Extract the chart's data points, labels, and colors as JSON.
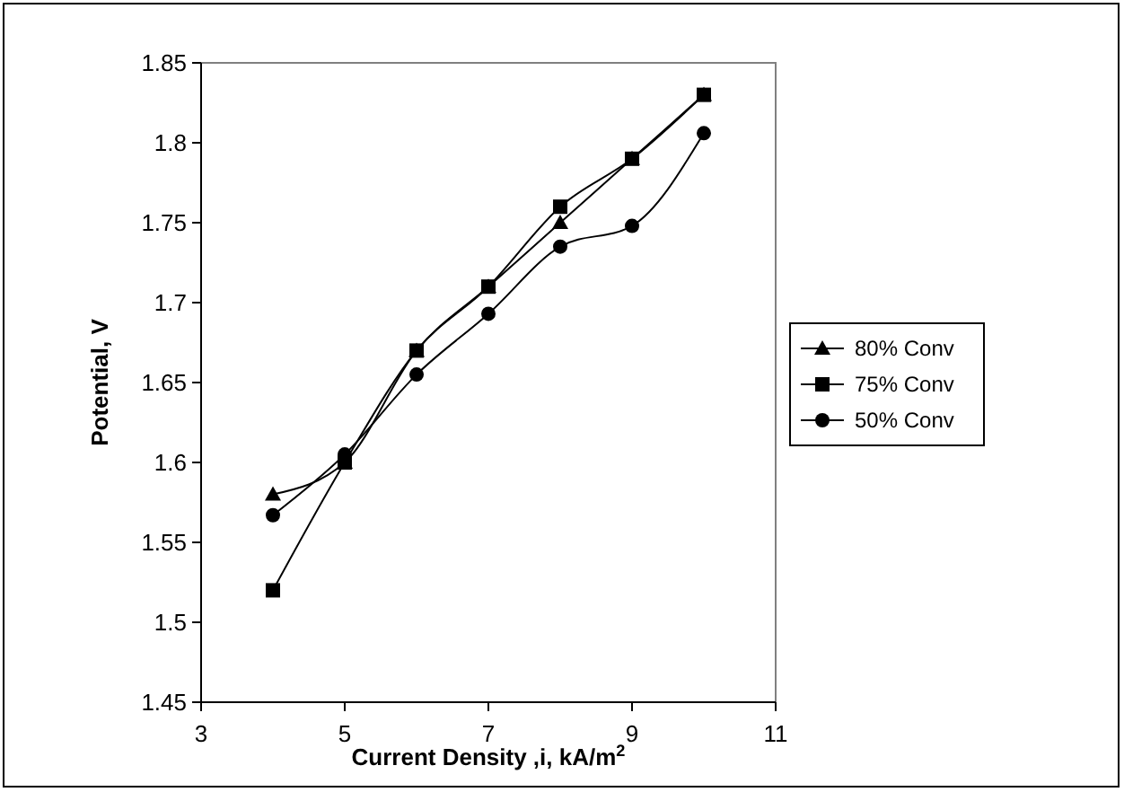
{
  "chart_data": {
    "type": "line",
    "xlabel": "Current Density ,i, kA/m$^{2}$",
    "ylabel": "Potential, V",
    "x": [
      4,
      5,
      6,
      7,
      8,
      9,
      10
    ],
    "xlim": [
      3,
      11
    ],
    "xticks": [
      3,
      5,
      7,
      9,
      11
    ],
    "ylim": [
      1.45,
      1.85
    ],
    "yticks": [
      1.45,
      1.5,
      1.55,
      1.6,
      1.65,
      1.7,
      1.75,
      1.8,
      1.85
    ],
    "grid": false,
    "legend": "right",
    "line_style": "solid",
    "series": [
      {
        "name": "80% Conv",
        "color": "#000000",
        "marker": "triangle",
        "values": [
          1.58,
          1.6,
          1.67,
          1.71,
          1.75,
          1.79,
          1.83
        ]
      },
      {
        "name": "75% Conv",
        "color": "#000000",
        "marker": "square",
        "values": [
          1.52,
          1.6,
          1.67,
          1.71,
          1.76,
          1.79,
          1.83
        ]
      },
      {
        "name": "50% Conv",
        "color": "#000000",
        "marker": "circle",
        "values": [
          1.567,
          1.605,
          1.655,
          1.693,
          1.735,
          1.748,
          1.806
        ]
      }
    ]
  }
}
